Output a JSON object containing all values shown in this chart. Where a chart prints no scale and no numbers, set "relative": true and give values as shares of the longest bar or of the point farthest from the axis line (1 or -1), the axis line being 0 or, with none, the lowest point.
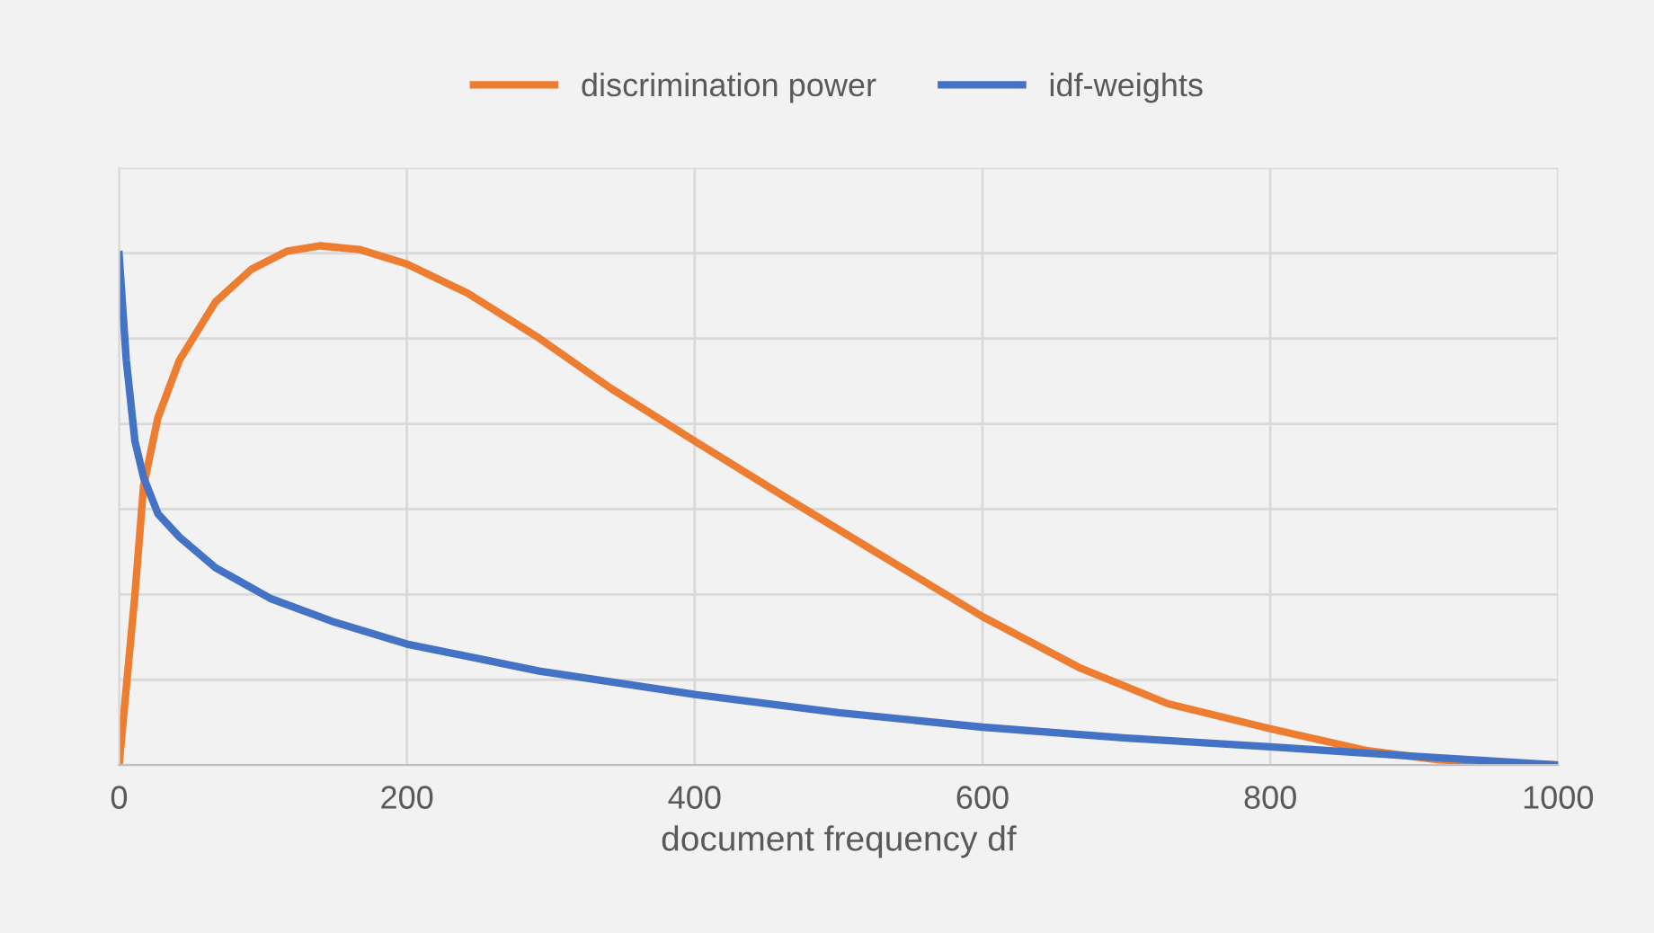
{
  "chart_data": {
    "type": "line",
    "relative": true,
    "xlabel": "document frequency df",
    "xlim": [
      0,
      1000
    ],
    "xticks": [
      0,
      200,
      400,
      600,
      800,
      1000
    ],
    "grid": true,
    "legend": "top",
    "marker": "none",
    "line_style": "solid",
    "series": [
      {
        "name": "discrimination power",
        "color": "#ed7d31",
        "x": [
          0,
          11,
          17,
          27,
          42,
          67,
          92,
          117,
          140,
          167,
          200,
          242,
          292,
          342,
          400,
          467,
          542,
          600,
          667,
          729,
          800,
          867,
          917,
          1000
        ],
        "values": [
          0,
          0.328,
          0.537,
          0.669,
          0.78,
          0.892,
          0.955,
          0.99,
          1,
          0.993,
          0.965,
          0.909,
          0.822,
          0.725,
          0.624,
          0.509,
          0.383,
          0.286,
          0.188,
          0.118,
          0.07,
          0.028,
          0.01,
          0
        ]
      },
      {
        "name": "idf-weights",
        "color": "#4472c4",
        "x": [
          0,
          5,
          11,
          17,
          27,
          42,
          67,
          105,
          150,
          200,
          292,
          400,
          500,
          600,
          700,
          800,
          900,
          1000
        ],
        "values": [
          0.983,
          0.78,
          0.624,
          0.554,
          0.484,
          0.439,
          0.38,
          0.321,
          0.275,
          0.233,
          0.181,
          0.136,
          0.101,
          0.073,
          0.052,
          0.035,
          0.017,
          0
        ]
      }
    ]
  }
}
